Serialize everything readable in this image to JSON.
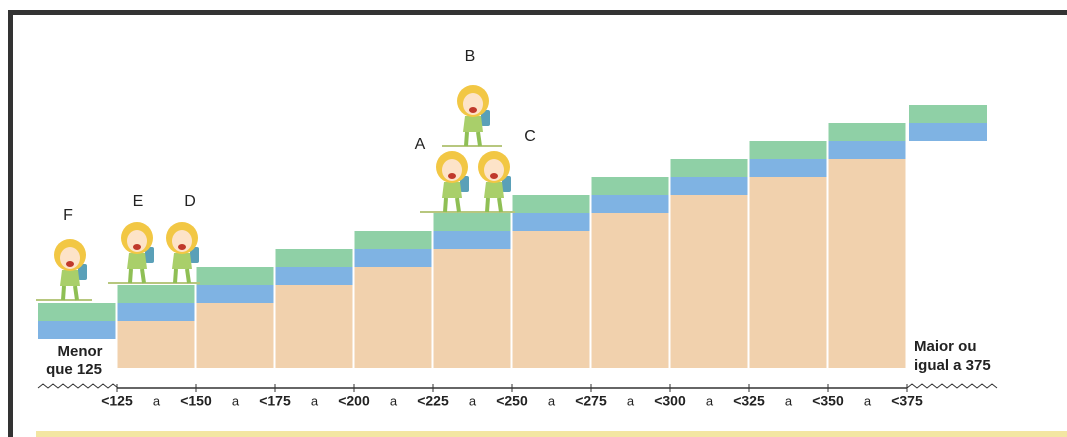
{
  "characters": [
    {
      "label": "F"
    },
    {
      "label": "E"
    },
    {
      "label": "D"
    },
    {
      "label": "A"
    },
    {
      "label": "B"
    },
    {
      "label": "C"
    }
  ],
  "lower_level": {
    "lines": [
      "Menor",
      "que 125"
    ]
  },
  "upper_level": {
    "lines": [
      "Maior ou",
      "igual a 375"
    ]
  },
  "scale": {
    "ticks": [
      "<125",
      "<150",
      "<175",
      "<200",
      "<225",
      "<250",
      "<275",
      "<300",
      "<325",
      "<350",
      "<375"
    ],
    "connector": "a"
  }
}
